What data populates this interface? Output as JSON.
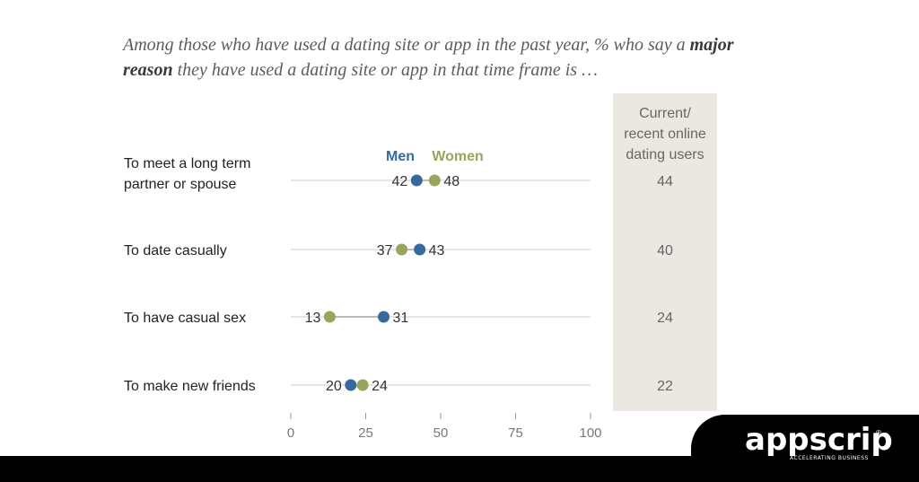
{
  "title": {
    "part1": "Among those who have used a dating site or app in the past year, % who say a ",
    "bold": "major reason",
    "part2": " they have used a dating site or app in that time frame is …"
  },
  "colors": {
    "men": "#366a9c",
    "women": "#98a55c",
    "side_panel": "#ebe8e1",
    "gridline": "#cccccc"
  },
  "chart_data": {
    "type": "scatter",
    "style": "dot-plot",
    "categories": [
      [
        "To meet a long term",
        "partner or spouse"
      ],
      [
        "To date casually"
      ],
      [
        "To have casual sex"
      ],
      [
        "To make new friends"
      ]
    ],
    "series": [
      {
        "name": "Men",
        "values": [
          42,
          43,
          31,
          20
        ]
      },
      {
        "name": "Women",
        "values": [
          48,
          37,
          13,
          24
        ]
      }
    ],
    "xlim": [
      0,
      100
    ],
    "xticks": [
      0,
      25,
      50,
      75,
      100
    ],
    "side_column": {
      "header": [
        "Current/",
        "recent online",
        "dating users"
      ],
      "values": [
        44,
        40,
        24,
        22
      ]
    },
    "legend_placement": "top-center"
  },
  "brand": {
    "name": "appscrip",
    "tagline": "ACCELERATING BUSINESS",
    "reg": "®"
  }
}
